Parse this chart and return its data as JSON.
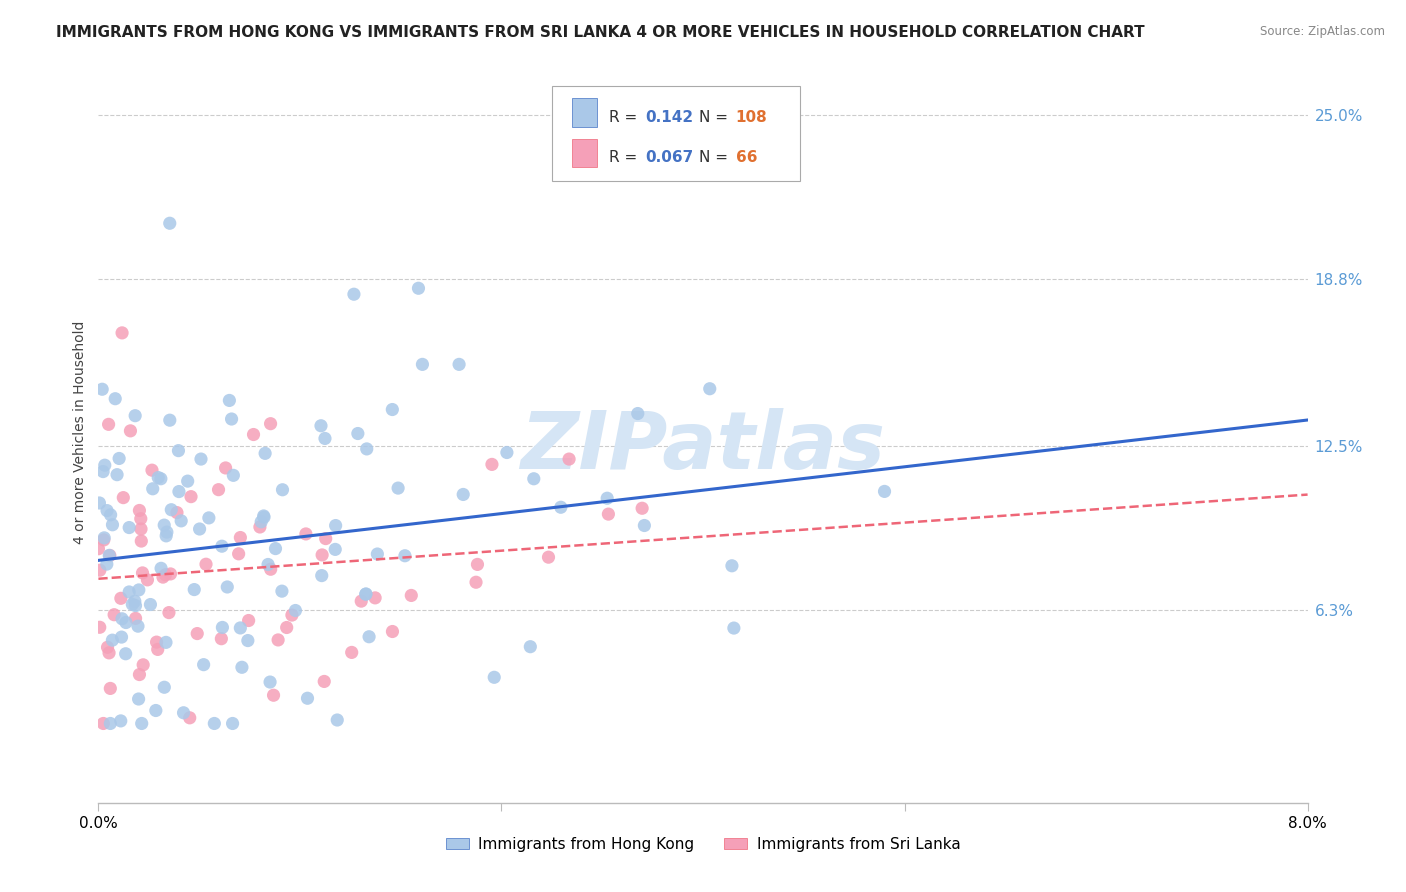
{
  "title": "IMMIGRANTS FROM HONG KONG VS IMMIGRANTS FROM SRI LANKA 4 OR MORE VEHICLES IN HOUSEHOLD CORRELATION CHART",
  "source": "Source: ZipAtlas.com",
  "ylabel": "4 or more Vehicles in Household",
  "ytick_labels": [
    "6.3%",
    "12.5%",
    "18.8%",
    "25.0%"
  ],
  "ytick_values": [
    0.063,
    0.125,
    0.188,
    0.25
  ],
  "xlim": [
    0.0,
    0.08
  ],
  "ylim": [
    -0.01,
    0.27
  ],
  "hk_R": 0.142,
  "hk_N": 108,
  "sl_R": 0.067,
  "sl_N": 66,
  "hk_color": "#aac8e8",
  "sl_color": "#f5a0b8",
  "hk_line_color": "#3366cc",
  "sl_line_color": "#ee6677",
  "watermark": "ZIPatlas",
  "watermark_color": "#d5e5f5",
  "legend_hk_label": "Immigrants from Hong Kong",
  "legend_sl_label": "Immigrants from Sri Lanka",
  "title_fontsize": 11,
  "axis_label_fontsize": 10,
  "tick_fontsize": 11,
  "right_tick_color": "#5b9bd5",
  "legend_R_color": "#4472c4",
  "legend_N_color": "#e07030"
}
